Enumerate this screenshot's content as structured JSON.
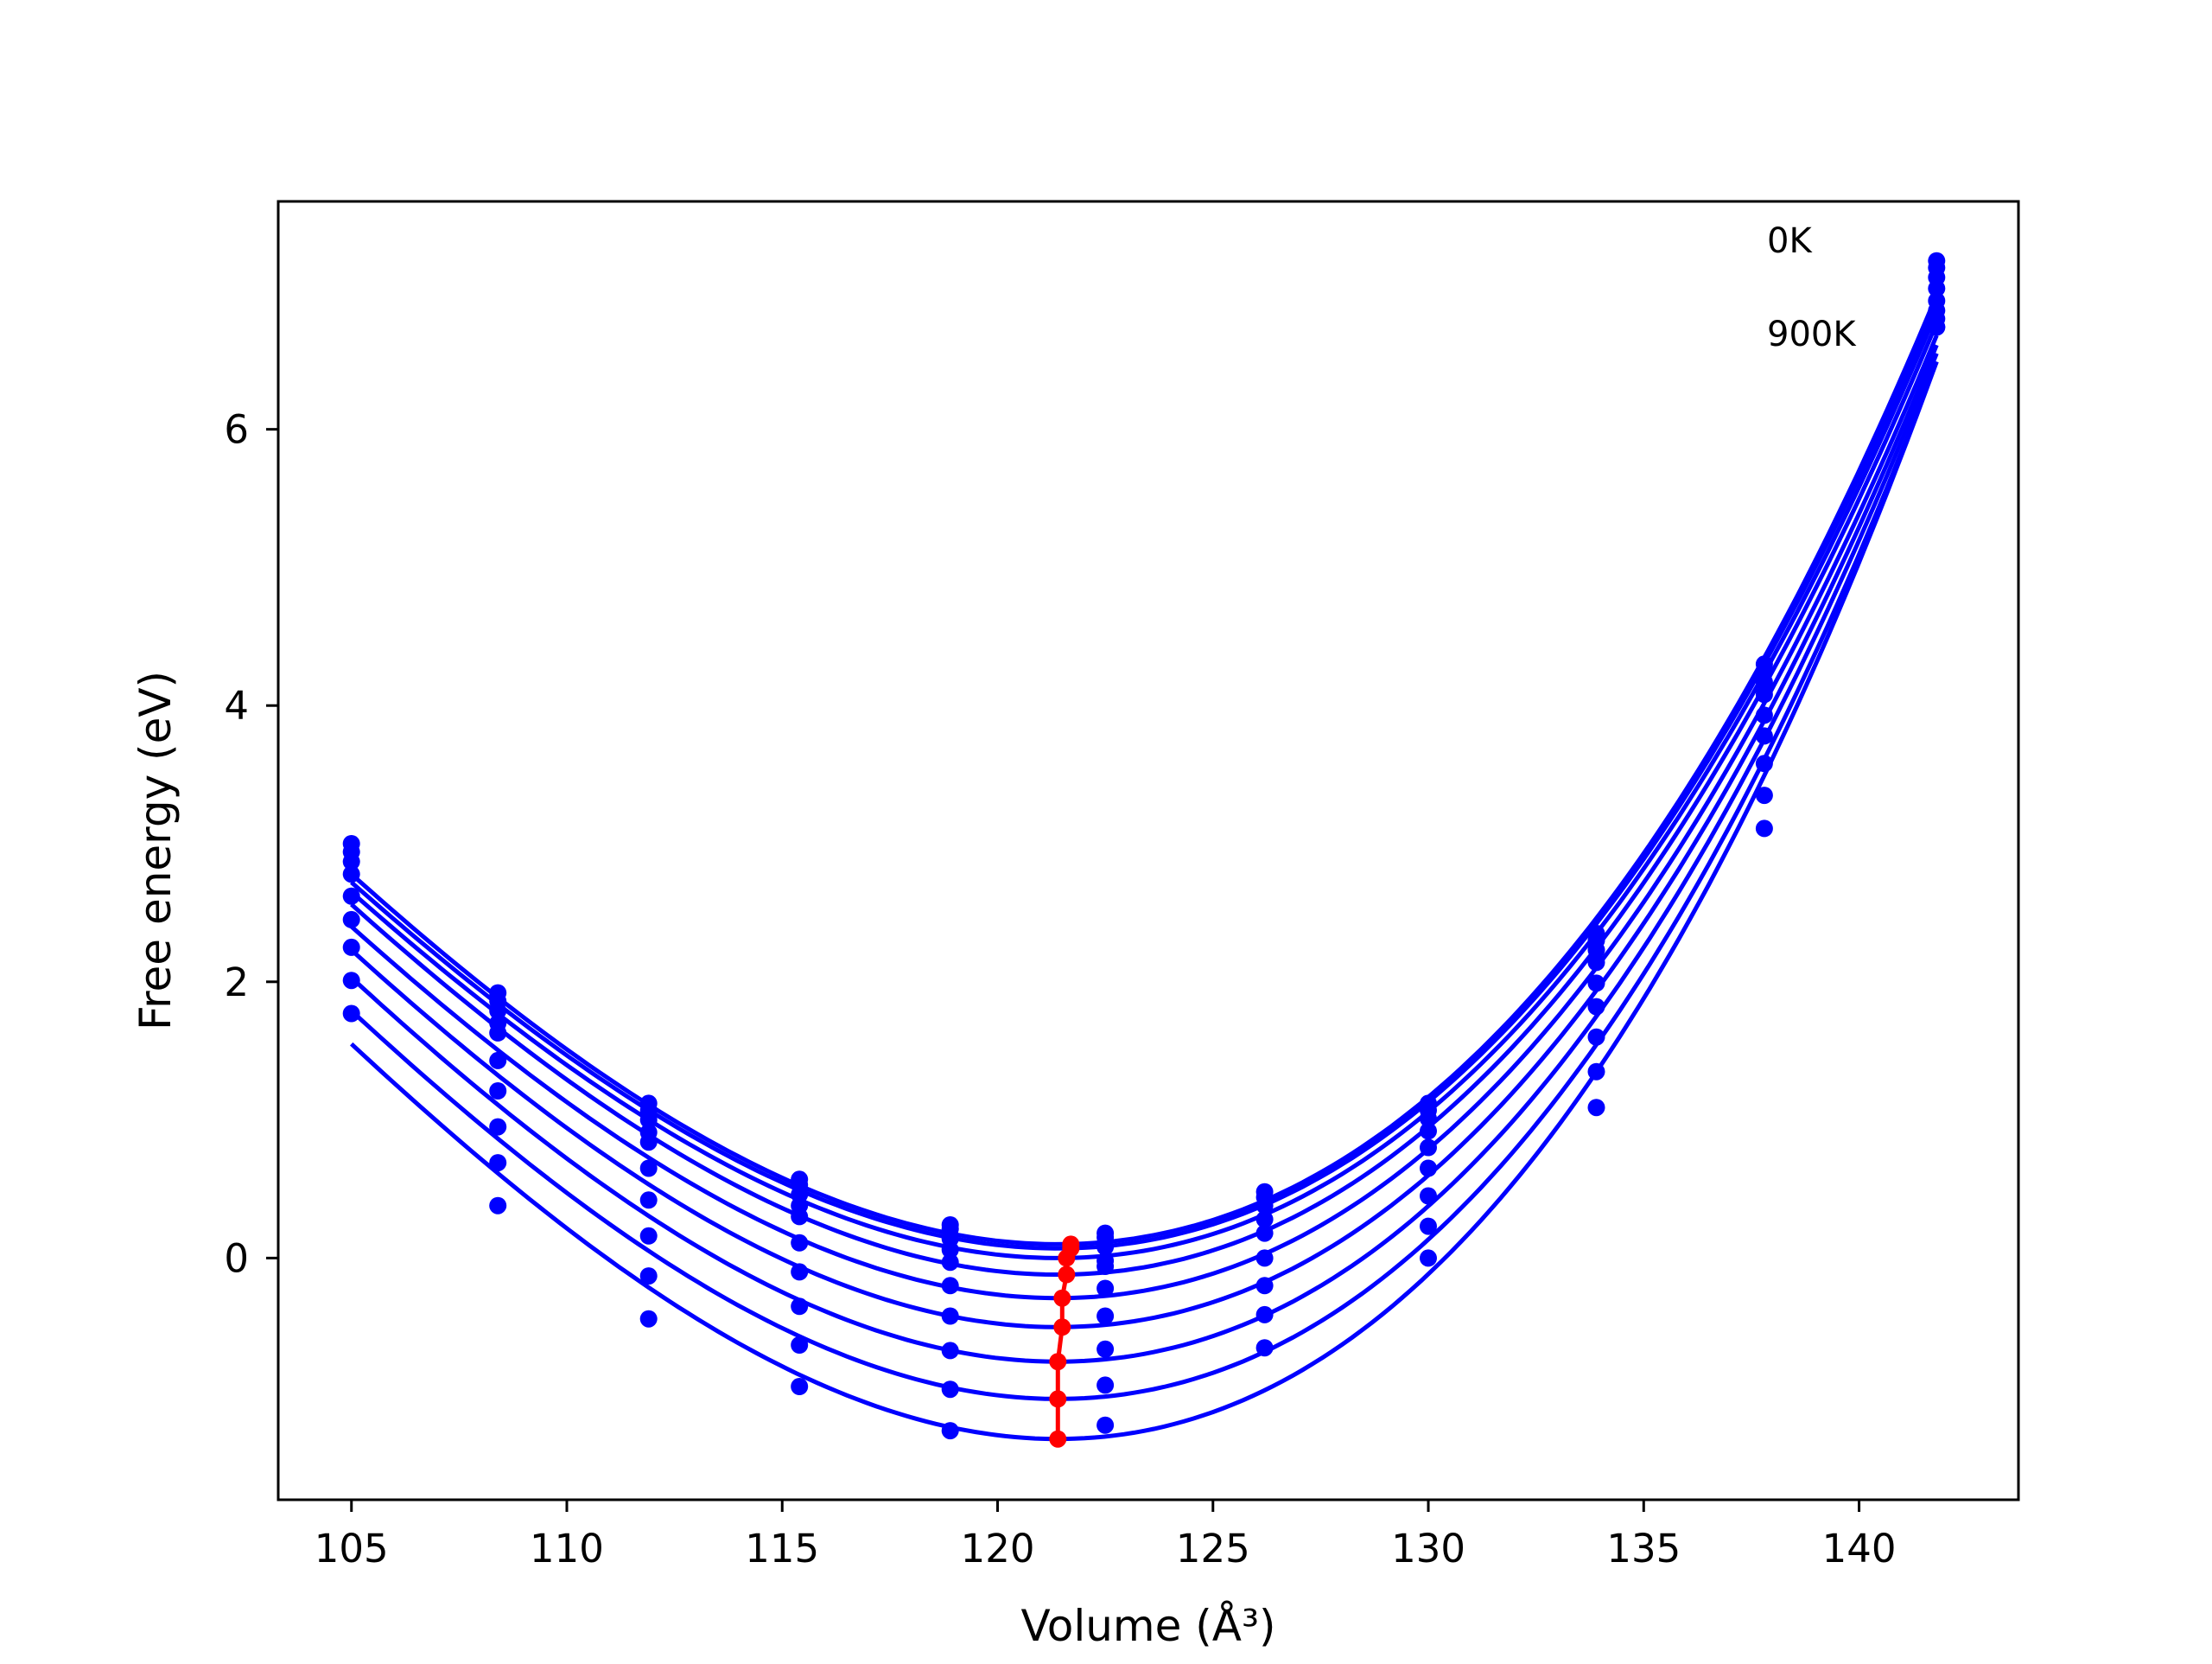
{
  "chart_data": {
    "type": "scatter",
    "xlabel": "Volume (Å³)",
    "ylabel": "Free energy (eV)",
    "xlim": [
      103.3,
      143.7
    ],
    "ylim": [
      -1.75,
      7.65
    ],
    "xticks": [
      105,
      110,
      115,
      120,
      125,
      130,
      135,
      140
    ],
    "yticks": [
      0,
      2,
      4,
      6
    ],
    "grid": false,
    "legend": "none",
    "annotations": [
      "0K",
      "900K"
    ],
    "colors": {
      "data": "#0000ff",
      "fit": "#0000ff",
      "minima": "#ff0000"
    },
    "volumes": [
      105.0,
      108.4,
      111.9,
      115.4,
      118.9,
      122.5,
      126.2,
      130.0,
      133.9,
      137.8,
      141.8
    ],
    "series": [
      {
        "energies": [
          3.0,
          1.92,
          1.12,
          0.57,
          0.24,
          0.18,
          0.48,
          1.12,
          2.35,
          4.3,
          7.22
        ],
        "fit_min": [
          121.4,
          0.1
        ]
      },
      {
        "energies": [
          2.94,
          1.86,
          1.07,
          0.53,
          0.21,
          0.15,
          0.44,
          1.07,
          2.3,
          4.25,
          7.17
        ],
        "fit_min": [
          121.4,
          0.07
        ]
      },
      {
        "energies": [
          2.87,
          1.79,
          1.0,
          0.46,
          0.14,
          0.08,
          0.38,
          1.01,
          2.23,
          4.17,
          7.1
        ],
        "fit_min": [
          121.4,
          0.0
        ]
      },
      {
        "energies": [
          2.78,
          1.7,
          0.91,
          0.38,
          0.06,
          -0.02,
          0.28,
          0.92,
          2.14,
          4.08,
          7.02
        ],
        "fit_min": [
          121.4,
          -0.12
        ]
      },
      {
        "energies": [
          2.62,
          1.63,
          0.84,
          0.3,
          -0.03,
          -0.06,
          0.18,
          0.8,
          1.99,
          3.93,
          6.93
        ],
        "fit_min": [
          121.4,
          -0.29
        ]
      },
      {
        "energies": [
          2.45,
          1.43,
          0.65,
          0.11,
          -0.2,
          -0.22,
          0.0,
          0.65,
          1.82,
          3.78,
          6.86
        ],
        "fit_min": [
          121.4,
          -0.5
        ]
      },
      {
        "energies": [
          2.25,
          1.21,
          0.42,
          -0.1,
          -0.42,
          -0.42,
          -0.2,
          0.45,
          1.6,
          3.58,
          6.8
        ],
        "fit_min": [
          121.4,
          -0.75
        ]
      },
      {
        "energies": [
          2.01,
          0.95,
          0.16,
          -0.35,
          -0.67,
          -0.66,
          -0.41,
          0.23,
          1.35,
          3.35,
          6.74
        ],
        "fit_min": [
          121.4,
          -1.02
        ]
      },
      {
        "energies": [
          1.77,
          0.69,
          -0.13,
          -0.63,
          -0.95,
          -0.92,
          -0.65,
          0.0,
          1.09,
          3.11,
          6.74
        ],
        "fit_min": [
          121.4,
          -1.31
        ]
      },
      {
        "energies": [
          null,
          0.38,
          -0.44,
          -0.93,
          -1.25,
          -1.21,
          null,
          null,
          null,
          null,
          null
        ],
        "fit_min": null
      }
    ],
    "minima_curve": [
      [
        121.4,
        -1.31
      ],
      [
        121.4,
        -1.02
      ],
      [
        121.4,
        -0.75
      ],
      [
        121.5,
        -0.5
      ],
      [
        121.5,
        -0.29
      ],
      [
        121.6,
        -0.12
      ],
      [
        121.6,
        0.0
      ],
      [
        121.7,
        0.07
      ],
      [
        121.7,
        0.1
      ]
    ]
  }
}
